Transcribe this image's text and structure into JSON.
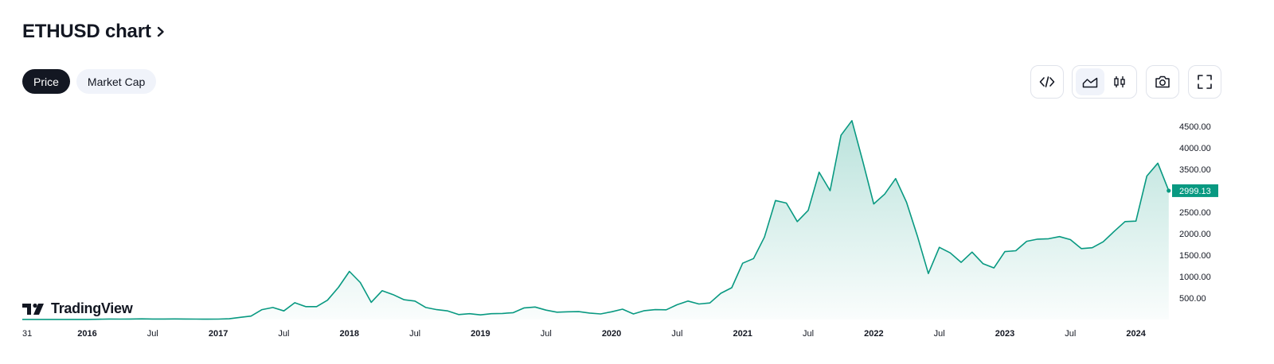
{
  "header": {
    "title": "ETHUSD chart"
  },
  "tabs": [
    {
      "label": "Price",
      "active": true
    },
    {
      "label": "Market Cap",
      "active": false
    }
  ],
  "toolbar": {
    "icons": [
      "embed-code-icon",
      "area-chart-icon",
      "candlestick-icon",
      "camera-icon",
      "fullscreen-icon"
    ]
  },
  "branding": {
    "logo_text": "TradingView"
  },
  "colors": {
    "line": "#089981",
    "price_label_bg": "#089981",
    "text": "#131722",
    "tab_active_bg": "#131722",
    "tab_inactive_bg": "#f0f3fa"
  },
  "chart_data": {
    "type": "area",
    "title": "",
    "xlabel": "",
    "ylabel": "",
    "grid": false,
    "x_tick_labels": [
      "31",
      "2016",
      "Jul",
      "2017",
      "Jul",
      "2018",
      "Jul",
      "2019",
      "Jul",
      "2020",
      "Jul",
      "2021",
      "Jul",
      "2022",
      "Jul",
      "2023",
      "Jul",
      "2024"
    ],
    "x_tick_months": [
      -1,
      0,
      6,
      12,
      18,
      24,
      30,
      36,
      42,
      48,
      54,
      60,
      66,
      72,
      78,
      84,
      90,
      96
    ],
    "bold_ticks": [
      "2016",
      "2017",
      "2018",
      "2019",
      "2020",
      "2021",
      "2022",
      "2023",
      "2024"
    ],
    "y_tick_labels": [
      "500.00",
      "1000.00",
      "1500.00",
      "2000.00",
      "2500.00",
      "3000.00",
      "3500.00",
      "4000.00",
      "4500.00"
    ],
    "y_ticks": [
      500,
      1000,
      1500,
      2000,
      2500,
      3000,
      3500,
      4000,
      4500
    ],
    "ylim": [
      0,
      4700
    ],
    "last_price": 2999.13,
    "last_price_label": "2999.13",
    "series": [
      {
        "x": [
          "2015-12",
          "2016-01",
          "2016-02",
          "2016-03",
          "2016-04",
          "2016-05",
          "2016-06",
          "2016-07",
          "2016-08",
          "2016-09",
          "2016-10",
          "2016-11",
          "2016-12",
          "2017-01",
          "2017-02",
          "2017-03",
          "2017-04",
          "2017-05",
          "2017-06",
          "2017-07",
          "2017-08",
          "2017-09",
          "2017-10",
          "2017-11",
          "2017-12",
          "2018-01",
          "2018-02",
          "2018-03",
          "2018-04",
          "2018-05",
          "2018-06",
          "2018-07",
          "2018-08",
          "2018-09",
          "2018-10",
          "2018-11",
          "2018-12",
          "2019-01",
          "2019-02",
          "2019-03",
          "2019-04",
          "2019-05",
          "2019-06",
          "2019-07",
          "2019-08",
          "2019-09",
          "2019-10",
          "2019-11",
          "2019-12",
          "2020-01",
          "2020-02",
          "2020-03",
          "2020-04",
          "2020-05",
          "2020-06",
          "2020-07",
          "2020-08",
          "2020-09",
          "2020-10",
          "2020-11",
          "2020-12",
          "2021-01",
          "2021-02",
          "2021-03",
          "2021-04",
          "2021-05",
          "2021-06",
          "2021-07",
          "2021-08",
          "2021-09",
          "2021-10",
          "2021-11",
          "2021-12",
          "2022-01",
          "2022-02",
          "2022-03",
          "2022-04",
          "2022-05",
          "2022-06",
          "2022-07",
          "2022-08",
          "2022-09",
          "2022-10",
          "2022-11",
          "2022-12",
          "2023-01",
          "2023-02",
          "2023-03",
          "2023-04",
          "2023-05",
          "2023-06",
          "2023-07",
          "2023-08",
          "2023-09",
          "2023-10",
          "2023-11",
          "2023-12",
          "2024-01",
          "2024-02",
          "2024-03",
          "2024-04"
        ],
        "values": [
          1,
          1,
          6,
          11,
          9,
          12,
          14,
          12,
          12,
          13,
          11,
          9,
          8,
          10,
          16,
          50,
          80,
          230,
          280,
          200,
          390,
          300,
          300,
          450,
          750,
          1120,
          860,
          400,
          670,
          580,
          460,
          430,
          280,
          230,
          200,
          115,
          135,
          107,
          136,
          140,
          160,
          270,
          290,
          218,
          170,
          180,
          183,
          150,
          130,
          180,
          240,
          130,
          205,
          230,
          225,
          345,
          430,
          360,
          385,
          610,
          740,
          1310,
          1420,
          1920,
          2770,
          2710,
          2280,
          2540,
          3430,
          3000,
          4290,
          4630,
          3680,
          2690,
          2920,
          3280,
          2730,
          1940,
          1070,
          1680,
          1550,
          1330,
          1570,
          1300,
          1200,
          1580,
          1600,
          1820,
          1870,
          1880,
          1930,
          1860,
          1650,
          1670,
          1810,
          2050,
          2280,
          2290,
          3340,
          3640,
          2999.13
        ]
      }
    ]
  }
}
